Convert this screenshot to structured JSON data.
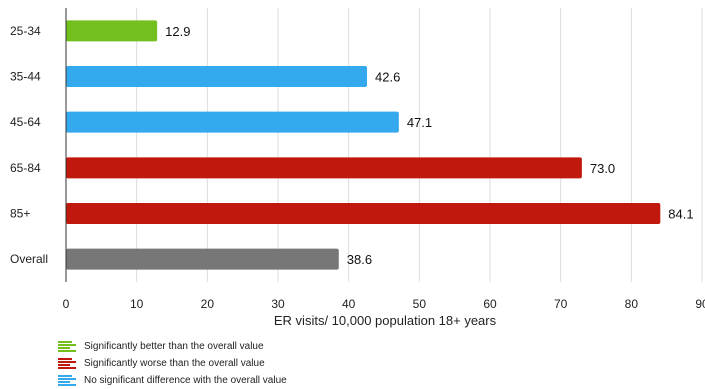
{
  "chart_data": {
    "type": "bar",
    "orientation": "horizontal",
    "categories": [
      "25-34",
      "35-44",
      "45-64",
      "65-84",
      "85+",
      "Overall"
    ],
    "values": [
      12.9,
      42.6,
      47.1,
      73.0,
      84.1,
      38.6
    ],
    "value_labels": [
      "12.9",
      "42.6",
      "47.1",
      "73.0",
      "84.1",
      "38.6"
    ],
    "bar_colors": [
      "#72bf1e",
      "#35a9ee",
      "#35a9ee",
      "#c0180c",
      "#c0180c",
      "#777777"
    ],
    "xlabel": "ER visits/ 10,000 population 18+ years",
    "xlim": [
      0,
      90
    ],
    "xticks": [
      0,
      10,
      20,
      30,
      40,
      50,
      60,
      70,
      80,
      90
    ],
    "grid": "vertical"
  },
  "legend": [
    {
      "label": "Significantly better than the overall value",
      "color": "#72bf1e",
      "icon": "green-bars-icon"
    },
    {
      "label": "Significantly worse than the overall value",
      "color": "#c0180c",
      "icon": "red-bars-icon"
    },
    {
      "label": "No significant difference with the overall value",
      "color": "#35a9ee",
      "icon": "blue-bars-icon"
    }
  ]
}
